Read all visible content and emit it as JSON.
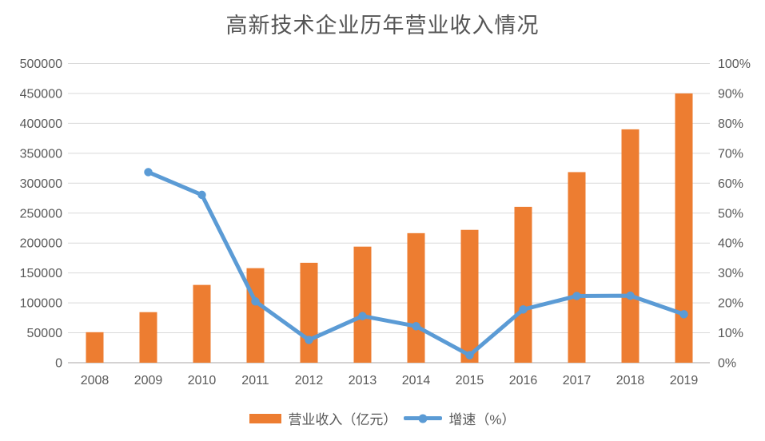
{
  "title": "高新技术企业历年营业收入情况",
  "legend": {
    "revenue_label": "营业收入（亿元）",
    "growth_label": "增速（%）"
  },
  "colors": {
    "bar": "#ED7D31",
    "line": "#5B9BD5",
    "gridline": "#D9D9D9",
    "axis_line": "#C6C4C4",
    "text": "#595959",
    "title_text": "#555555"
  },
  "chart_data": {
    "type": "bar",
    "subtype": "combo-bar-line-dual-axis",
    "title": "高新技术企业历年营业收入情况",
    "categories": [
      "2008",
      "2009",
      "2010",
      "2011",
      "2012",
      "2013",
      "2014",
      "2015",
      "2016",
      "2017",
      "2018",
      "2019"
    ],
    "series": [
      {
        "name": "营业收入（亿元）",
        "type": "bar",
        "axis": "left",
        "color": "#ED7D31",
        "values": [
          51000,
          84500,
          130000,
          158000,
          167000,
          194000,
          216500,
          222000,
          260500,
          318500,
          390000,
          450000
        ]
      },
      {
        "name": "增速（%）",
        "type": "line",
        "axis": "right",
        "color": "#5B9BD5",
        "values": [
          null,
          63.7,
          56.1,
          20.5,
          7.6,
          15.6,
          12.2,
          2.5,
          17.8,
          22.3,
          22.4,
          16.2
        ]
      }
    ],
    "left_axis": {
      "min": 0,
      "max": 500000,
      "step": 50000,
      "tick_labels": [
        "0",
        "50000",
        "100000",
        "150000",
        "200000",
        "250000",
        "300000",
        "350000",
        "400000",
        "450000",
        "500000"
      ]
    },
    "right_axis": {
      "min": 0,
      "max": 100,
      "step": 10,
      "tick_labels": [
        "0%",
        "10%",
        "20%",
        "30%",
        "40%",
        "50%",
        "60%",
        "70%",
        "80%",
        "90%",
        "100%"
      ]
    },
    "grid": true,
    "legend_position": "bottom",
    "xlabel": "",
    "ylabel": ""
  }
}
